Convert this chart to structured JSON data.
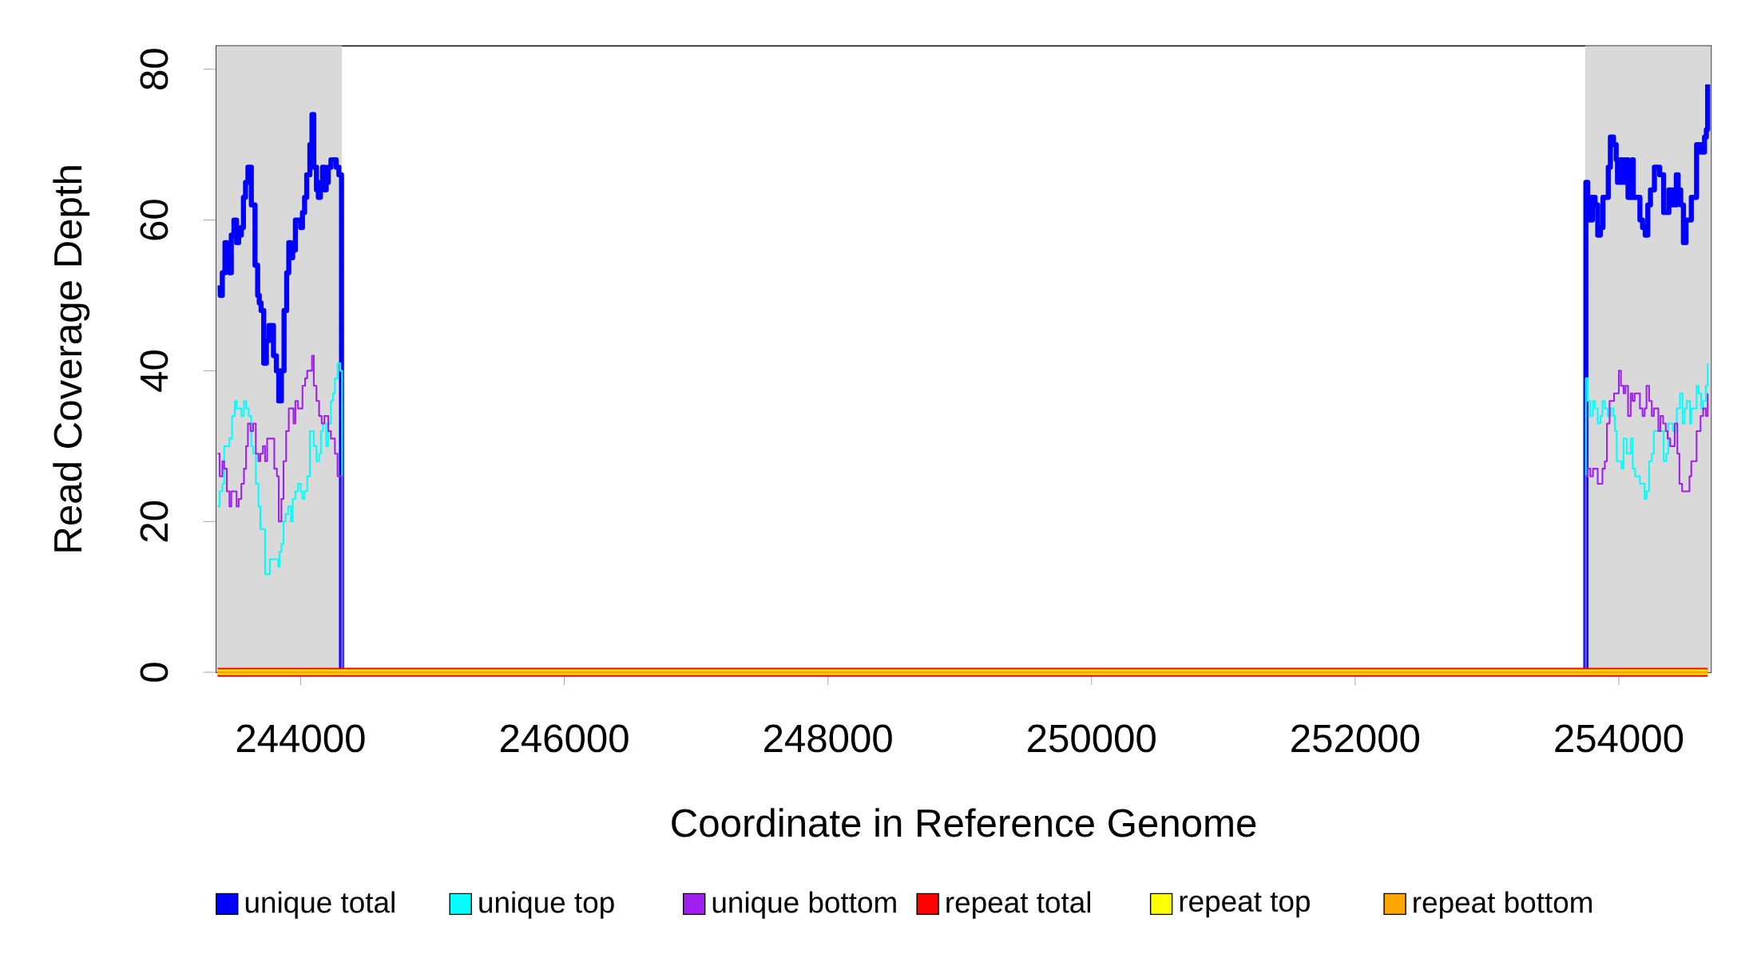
{
  "chart_data": {
    "type": "step",
    "xlabel": "Coordinate in Reference Genome",
    "ylabel": "Read Coverage Depth",
    "xlim": [
      243360,
      254700
    ],
    "ylim": [
      0,
      83.1
    ],
    "xticks": [
      244000,
      246000,
      248000,
      250000,
      252000,
      254000
    ],
    "yticks": [
      0,
      20,
      40,
      60,
      80
    ],
    "grid": false,
    "legend": "bottom",
    "marker": "none",
    "line_style": "solid",
    "bands": [
      {
        "axis": "x",
        "from": 243360,
        "to": 244314,
        "color": "#d9d9d9"
      },
      {
        "axis": "x",
        "from": 253745,
        "to": 254700,
        "color": "#d9d9d9"
      }
    ],
    "series": [
      {
        "name": "repeat total",
        "color": "#ff0000",
        "x": [
          243370,
          254674
        ],
        "values": [
          0,
          0
        ]
      },
      {
        "name": "repeat top",
        "color": "#ffff00",
        "x": [
          243370,
          254674
        ],
        "values": [
          0,
          0
        ]
      },
      {
        "name": "repeat bottom",
        "color": "#ffa500",
        "x": [
          243370,
          254674
        ],
        "values": [
          0,
          0
        ]
      },
      {
        "name": "unique total",
        "color": "#0000ff",
        "x": [
          243370,
          243390,
          243406,
          243426,
          243440,
          243460,
          243474,
          243494,
          243514,
          243530,
          243550,
          243566,
          243582,
          243600,
          243626,
          243654,
          243674,
          243686,
          243700,
          243720,
          243740,
          243760,
          243794,
          243816,
          243834,
          243854,
          243874,
          243894,
          243910,
          243924,
          243940,
          243960,
          244000,
          244014,
          244030,
          244046,
          244070,
          244086,
          244100,
          244120,
          244134,
          244150,
          244166,
          244180,
          244194,
          244210,
          244230,
          244270,
          244290,
          244310,
          253750,
          253764,
          253780,
          253800,
          253820,
          253840,
          253860,
          253880,
          253920,
          253936,
          253960,
          253980,
          253990,
          254010,
          254030,
          254050,
          254070,
          254100,
          254110,
          254160,
          254180,
          254200,
          254220,
          254240,
          254270,
          254310,
          254340,
          254380,
          254410,
          254436,
          254450,
          254470,
          254490,
          254510,
          254550,
          254590,
          254620,
          254650,
          254664,
          254674
        ],
        "values": [
          51,
          50,
          53,
          57,
          54,
          53,
          58,
          60,
          57,
          58,
          59,
          63,
          65,
          67,
          62,
          54,
          50,
          49,
          48,
          41,
          44,
          46,
          42,
          40,
          36,
          40,
          48,
          53,
          57,
          55,
          56,
          60,
          59,
          61,
          63,
          66,
          70,
          74,
          67,
          64,
          63,
          65,
          67,
          64,
          65,
          67,
          68,
          67,
          66,
          0,
          65,
          63,
          60,
          63,
          62,
          58,
          59,
          63,
          67,
          71,
          70,
          68,
          65,
          68,
          65,
          68,
          63,
          68,
          63,
          60,
          59,
          58,
          62,
          64,
          67,
          66,
          61,
          64,
          62,
          66,
          64,
          62,
          57,
          60,
          63,
          70,
          69,
          71,
          72,
          78
        ]
      },
      {
        "name": "unique top",
        "color": "#00ffff",
        "x": [
          243370,
          243386,
          243406,
          243420,
          243460,
          243480,
          243500,
          243514,
          243550,
          243570,
          243586,
          243606,
          243626,
          243640,
          243660,
          243680,
          243694,
          243730,
          243766,
          243830,
          243840,
          243854,
          243870,
          243886,
          243906,
          243926,
          243940,
          243960,
          243980,
          244000,
          244014,
          244030,
          244050,
          244070,
          244100,
          244120,
          244140,
          244154,
          244170,
          244194,
          244210,
          244230,
          244246,
          244260,
          244280,
          244300,
          244314,
          253750,
          253764,
          253784,
          253804,
          253820,
          253840,
          253860,
          253876,
          253894,
          253916,
          253940,
          253960,
          253970,
          253984,
          254020,
          254036,
          254060,
          254090,
          254106,
          254124,
          254160,
          254196,
          254210,
          254230,
          254250,
          254266,
          254340,
          254360,
          254376,
          254410,
          254440,
          254464,
          254484,
          254500,
          254516,
          254540,
          254550,
          254590,
          254606,
          254624,
          254640,
          254660,
          254674
        ],
        "values": [
          22,
          24,
          25,
          30,
          31,
          34,
          36,
          35,
          34,
          36,
          35,
          34,
          30,
          29,
          25,
          22,
          19,
          13,
          15,
          14,
          16,
          17,
          20,
          21,
          22,
          20,
          23,
          24,
          25,
          24,
          23,
          24,
          26,
          32,
          30,
          28,
          29,
          32,
          33,
          30,
          33,
          36,
          37,
          39,
          41,
          40,
          0,
          39,
          36,
          34,
          36,
          35,
          33,
          34,
          36,
          35,
          34,
          35,
          34,
          32,
          28,
          27,
          31,
          29,
          31,
          27,
          26,
          25,
          23,
          24,
          28,
          29,
          32,
          28,
          29,
          33,
          32,
          35,
          37,
          33,
          35,
          36,
          33,
          35,
          38,
          37,
          35,
          36,
          38,
          41
        ]
      },
      {
        "name": "unique bottom",
        "color": "#a020f0",
        "x": [
          243370,
          243386,
          243406,
          243420,
          243440,
          243460,
          243474,
          243514,
          243530,
          243550,
          243570,
          243586,
          243600,
          243620,
          243640,
          243660,
          243680,
          243694,
          243714,
          243730,
          243746,
          243800,
          243820,
          243834,
          243854,
          243870,
          243890,
          243910,
          243946,
          243960,
          243980,
          244014,
          244034,
          244050,
          244086,
          244100,
          244120,
          244140,
          244160,
          244180,
          244210,
          244230,
          244260,
          244280,
          244310,
          253750,
          253764,
          253784,
          253804,
          253840,
          253876,
          253894,
          253910,
          253930,
          253964,
          254000,
          254016,
          254036,
          254050,
          254070,
          254090,
          254104,
          254120,
          254160,
          254180,
          254196,
          254210,
          254230,
          254250,
          254266,
          254300,
          254316,
          254336,
          254356,
          254370,
          254390,
          254424,
          254444,
          254460,
          254480,
          254536,
          254550,
          254590,
          254620,
          254640,
          254660,
          254674
        ],
        "values": [
          29,
          26,
          28,
          27,
          24,
          22,
          24,
          22,
          23,
          25,
          27,
          30,
          33,
          32,
          33,
          29,
          28,
          29,
          30,
          28,
          31,
          27,
          26,
          20,
          23,
          28,
          32,
          35,
          33,
          36,
          35,
          38,
          39,
          40,
          42,
          38,
          36,
          34,
          33,
          34,
          32,
          31,
          29,
          26,
          0,
          26,
          27,
          26,
          27,
          25,
          27,
          28,
          33,
          36,
          37,
          40,
          38,
          37,
          38,
          34,
          37,
          36,
          37,
          35,
          34,
          35,
          38,
          36,
          34,
          35,
          32,
          34,
          33,
          32,
          31,
          30,
          33,
          29,
          25,
          24,
          26,
          28,
          32,
          34,
          35,
          34,
          37
        ]
      }
    ]
  }
}
